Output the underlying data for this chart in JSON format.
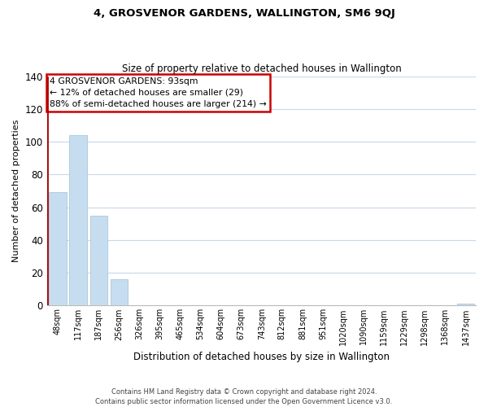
{
  "title": "4, GROSVENOR GARDENS, WALLINGTON, SM6 9QJ",
  "subtitle": "Size of property relative to detached houses in Wallington",
  "xlabel": "Distribution of detached houses by size in Wallington",
  "ylabel": "Number of detached properties",
  "categories": [
    "48sqm",
    "117sqm",
    "187sqm",
    "256sqm",
    "326sqm",
    "395sqm",
    "465sqm",
    "534sqm",
    "604sqm",
    "673sqm",
    "743sqm",
    "812sqm",
    "881sqm",
    "951sqm",
    "1020sqm",
    "1090sqm",
    "1159sqm",
    "1229sqm",
    "1298sqm",
    "1368sqm",
    "1437sqm"
  ],
  "values": [
    69,
    104,
    55,
    16,
    0,
    0,
    0,
    0,
    0,
    0,
    0,
    0,
    0,
    0,
    0,
    0,
    0,
    0,
    0,
    0,
    1
  ],
  "bar_color": "#c5ddef",
  "highlight_color": "#aa0000",
  "annotation_text_line1": "4 GROSVENOR GARDENS: 93sqm",
  "annotation_text_line2": "← 12% of detached houses are smaller (29)",
  "annotation_text_line3": "88% of semi-detached houses are larger (214) →",
  "box_edge_color": "#cc0000",
  "ylim": [
    0,
    140
  ],
  "yticks": [
    0,
    20,
    40,
    60,
    80,
    100,
    120,
    140
  ],
  "footer_line1": "Contains HM Land Registry data © Crown copyright and database right 2024.",
  "footer_line2": "Contains public sector information licensed under the Open Government Licence v3.0.",
  "background_color": "#ffffff",
  "grid_color": "#c8d8ea"
}
